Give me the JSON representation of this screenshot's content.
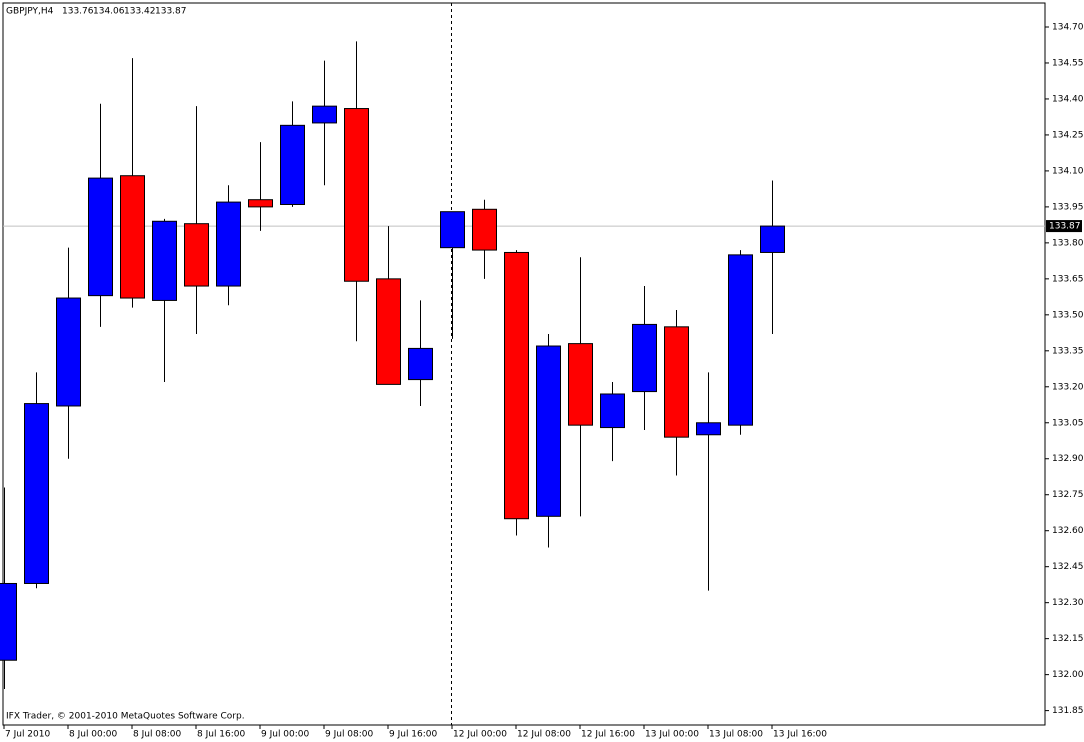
{
  "chart_data": {
    "type": "candlestick",
    "symbol": "GBPJPY,H4",
    "footer": "IFX Trader, © 2001-2010 MetaQuotes Software Corp.",
    "categories": [
      "7 Jul 2010",
      null,
      "8 Jul 00:00",
      null,
      "8 Jul 08:00",
      null,
      "8 Jul 16:00",
      null,
      "9 Jul 00:00",
      null,
      "9 Jul 08:00",
      null,
      "9 Jul 16:00",
      null,
      "12 Jul 00:00",
      null,
      "12 Jul 08:00",
      null,
      "12 Jul 16:00",
      null,
      "13 Jul 00:00",
      null,
      "13 Jul 08:00",
      null,
      "13 Jul 16:00"
    ],
    "open": [
      132.06,
      132.38,
      133.12,
      133.58,
      134.08,
      133.56,
      133.88,
      133.62,
      133.98,
      133.96,
      134.3,
      134.36,
      133.65,
      133.23,
      133.78,
      133.94,
      133.76,
      132.66,
      133.38,
      133.03,
      133.18,
      133.45,
      133.0,
      133.04,
      133.76
    ],
    "high": [
      132.78,
      133.26,
      133.78,
      134.38,
      134.57,
      133.9,
      134.37,
      134.04,
      134.22,
      134.39,
      134.56,
      134.64,
      133.87,
      133.56,
      133.93,
      133.98,
      133.77,
      133.42,
      133.74,
      133.22,
      133.62,
      133.52,
      133.26,
      133.77,
      134.06
    ],
    "low": [
      131.94,
      132.36,
      132.9,
      133.45,
      133.53,
      133.22,
      133.42,
      133.54,
      133.85,
      133.95,
      134.04,
      133.39,
      133.21,
      133.12,
      133.4,
      133.65,
      132.58,
      132.53,
      132.66,
      132.89,
      133.02,
      132.83,
      132.35,
      133.0,
      133.42
    ],
    "close": [
      132.38,
      133.13,
      133.57,
      134.07,
      133.57,
      133.89,
      133.62,
      133.97,
      133.95,
      134.29,
      134.37,
      133.64,
      133.21,
      133.36,
      133.93,
      133.77,
      132.65,
      133.37,
      133.04,
      133.17,
      133.46,
      132.99,
      133.05,
      133.75,
      133.87
    ],
    "up_color": "#0000ff",
    "down_color": "#ff0000",
    "ylim": [
      131.79,
      134.8
    ],
    "yticks": [
      {
        "value": 134.7,
        "label": "134.70"
      },
      134.55,
      {
        "value": 134.4,
        "label": "134.40"
      },
      134.25,
      {
        "value": 134.1,
        "label": "134.10"
      },
      133.95,
      {
        "value": 133.8,
        "label": "133.80"
      },
      133.65,
      {
        "value": 133.5,
        "label": "133.50"
      },
      133.35,
      {
        "value": 133.2,
        "label": "133.20"
      },
      133.05,
      {
        "value": 132.9,
        "label": "132.90"
      },
      132.75,
      {
        "value": 132.6,
        "label": "132.60"
      },
      132.45,
      {
        "value": 132.3,
        "label": "132.30"
      },
      132.15,
      {
        "value": 132.0,
        "label": "132.00"
      },
      131.85
    ]
  }
}
